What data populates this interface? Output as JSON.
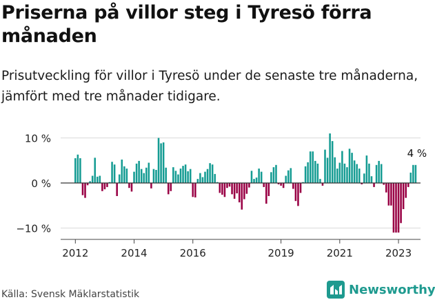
{
  "header": {
    "title": "Priserna på villor steg i Tyresö förra månaden",
    "subtitle": "Prisutveckling för villor i Tyresö under de senaste tre månaderna, jämfört med tre månader tidigare."
  },
  "footer": {
    "source": "Källa: Svensk Mäklarstatistik",
    "brand": "Newsworthy"
  },
  "colors": {
    "positive": "#159c93",
    "negative": "#990044",
    "brand": "#1e9a8f"
  },
  "chart_data": {
    "type": "bar",
    "title": "Priserna på villor steg i Tyresö förra månaden",
    "xlabel": "",
    "ylabel": "",
    "ylim": [
      -13,
      11
    ],
    "yticks": [
      -10,
      0,
      10
    ],
    "ytick_labels": [
      "−10 %",
      "0 %",
      "10 %"
    ],
    "xlim": [
      2011.5,
      2023.75
    ],
    "xticks": [
      2012,
      2014,
      2016,
      2019,
      2021,
      2023
    ],
    "xtick_labels": [
      "2012",
      "2014",
      "2016",
      "2019",
      "2021",
      "2023"
    ],
    "start": [
      2012,
      1
    ],
    "annotation": "4 %",
    "values": [
      5.5,
      6.3,
      5.5,
      -2.7,
      -3.3,
      -0.5,
      0.4,
      1.6,
      5.6,
      1.4,
      1.6,
      -1.8,
      -1.4,
      -0.9,
      0.2,
      4.7,
      4.1,
      -2.9,
      1.9,
      5.2,
      3.7,
      3.2,
      -1.1,
      -1.9,
      2.5,
      4.3,
      4.9,
      3.1,
      2.2,
      3.4,
      4.5,
      -1.2,
      3.1,
      2.9,
      10.0,
      8.8,
      9.0,
      3.4,
      -2.5,
      -1.8,
      3.5,
      2.7,
      1.9,
      3.2,
      3.8,
      4.1,
      2.6,
      3.1,
      -3.1,
      -3.2,
      0.9,
      2.2,
      1.3,
      2.5,
      3.1,
      4.4,
      4.1,
      2.0,
      0.2,
      -2.2,
      -2.6,
      -3.1,
      -1.1,
      -0.8,
      -2.5,
      -3.5,
      -2.3,
      -4.3,
      -5.9,
      -3.6,
      -2.4,
      -1.0,
      2.7,
      0.9,
      1.2,
      3.2,
      2.5,
      -0.9,
      -4.6,
      -2.9,
      2.4,
      3.5,
      4.0,
      -0.3,
      -0.6,
      -1.1,
      1.6,
      2.8,
      3.3,
      -1.3,
      -4.0,
      -5.1,
      -2.2,
      0.2,
      3.7,
      4.6,
      7.0,
      7.0,
      4.9,
      4.3,
      0.9,
      -0.6,
      7.4,
      5.6,
      11.0,
      9.3,
      5.7,
      3.2,
      4.5,
      7.1,
      4.3,
      3.5,
      7.6,
      6.7,
      5.0,
      4.2,
      3.2,
      -0.3,
      2.1,
      6.1,
      4.3,
      1.5,
      -0.9,
      4.0,
      4.9,
      4.2,
      -0.4,
      -2.1,
      -5.0,
      -5.0,
      -11.0,
      -11.0,
      -11.0,
      -8.9,
      -5.8,
      -3.3,
      -0.9,
      2.3,
      4.0,
      4.0
    ]
  }
}
